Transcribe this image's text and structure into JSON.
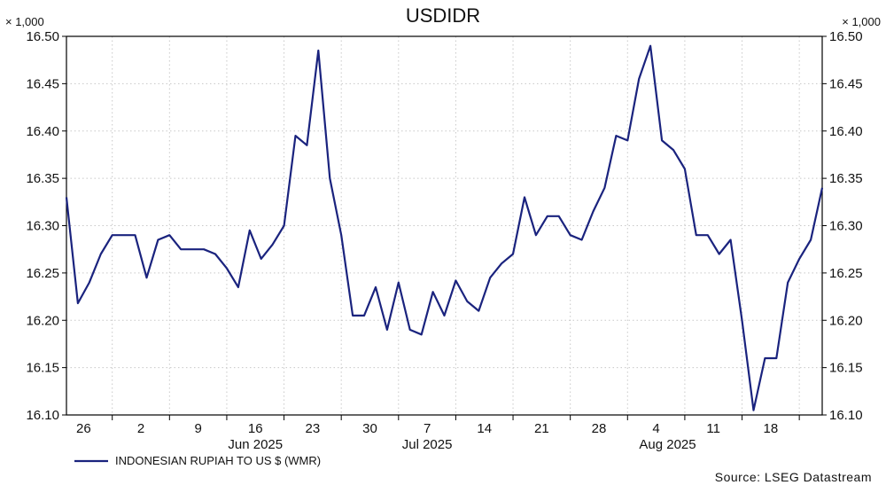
{
  "chart_data": {
    "type": "line",
    "title": "USDIDR",
    "unit_left": "× 1,000",
    "unit_right": "× 1,000",
    "ylim": [
      16.1,
      16.5
    ],
    "yticks": [
      "16.50",
      "16.45",
      "16.40",
      "16.35",
      "16.30",
      "16.25",
      "16.20",
      "16.15",
      "16.10"
    ],
    "xticks": [
      "26",
      "2",
      "9",
      "16",
      "23",
      "30",
      "7",
      "14",
      "21",
      "28",
      "4",
      "11",
      "18"
    ],
    "month_labels": [
      "Jun 2025",
      "Jul 2025",
      "Aug 2025"
    ],
    "grid": true,
    "legend_position": "bottom-left",
    "series": [
      {
        "name": "INDONESIAN RUPIAH TO US $ (WMR)",
        "color": "#1a237e",
        "values": [
          16.33,
          16.218,
          16.24,
          16.27,
          16.29,
          16.29,
          16.29,
          16.245,
          16.285,
          16.29,
          16.275,
          16.275,
          16.275,
          16.27,
          16.255,
          16.235,
          16.295,
          16.265,
          16.28,
          16.3,
          16.395,
          16.385,
          16.485,
          16.35,
          16.29,
          16.205,
          16.205,
          16.235,
          16.19,
          16.24,
          16.19,
          16.185,
          16.23,
          16.205,
          16.242,
          16.22,
          16.21,
          16.245,
          16.26,
          16.27,
          16.33,
          16.29,
          16.31,
          16.31,
          16.29,
          16.285,
          16.315,
          16.34,
          16.395,
          16.39,
          16.455,
          16.49,
          16.39,
          16.38,
          16.36,
          16.29,
          16.29,
          16.27,
          16.285,
          16.2,
          16.105,
          16.16,
          16.16,
          16.24,
          16.265,
          16.285,
          16.34
        ]
      }
    ]
  },
  "footer": {
    "source": "Source: LSEG Datastream"
  }
}
